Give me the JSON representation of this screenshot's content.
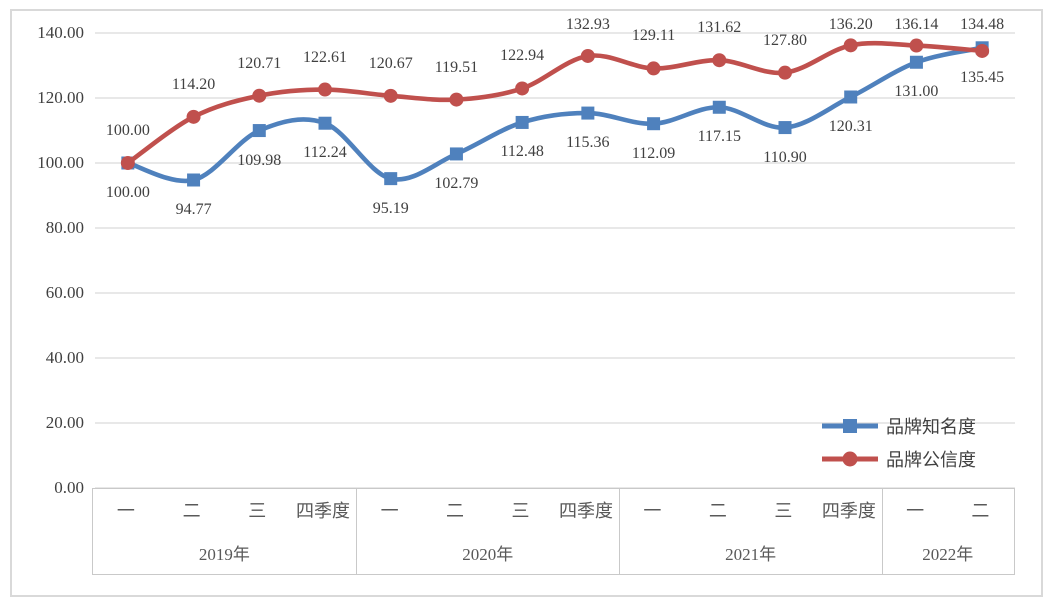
{
  "chart_data": {
    "type": "line",
    "title": "",
    "categories": [
      "一",
      "二",
      "三",
      "四季度",
      "一",
      "二",
      "三",
      "四季度",
      "一",
      "二",
      "三",
      "四季度",
      "一",
      "二"
    ],
    "year_groups": [
      {
        "label": "2019年",
        "span": 4
      },
      {
        "label": "2020年",
        "span": 4
      },
      {
        "label": "2021年",
        "span": 4
      },
      {
        "label": "2022年",
        "span": 2
      }
    ],
    "series": [
      {
        "name": "品牌知名度",
        "color": "#4F81BD",
        "marker": "square",
        "label_position": "below",
        "values": [
          100.0,
          94.77,
          109.98,
          112.24,
          95.19,
          102.79,
          112.48,
          115.36,
          112.09,
          117.15,
          110.9,
          120.31,
          131.0,
          135.45
        ]
      },
      {
        "name": "品牌公信度",
        "color": "#C0504D",
        "marker": "circle",
        "label_position": "above",
        "values": [
          100.0,
          114.2,
          120.71,
          122.61,
          120.67,
          119.51,
          122.94,
          132.93,
          129.11,
          131.62,
          127.8,
          136.2,
          136.14,
          134.48
        ]
      }
    ],
    "y_axis": {
      "min": 0,
      "max": 140,
      "step": 20,
      "tick_labels": [
        "0.00",
        "20.00",
        "40.00",
        "60.00",
        "80.00",
        "100.00",
        "120.00",
        "140.00"
      ]
    },
    "grid": true,
    "gridline_color": "#D9D9D9",
    "axis_table_border_color": "#C9C9C9",
    "legend_position": "right-lower",
    "smoothed_lines": true,
    "data_label_decimals": 2
  }
}
